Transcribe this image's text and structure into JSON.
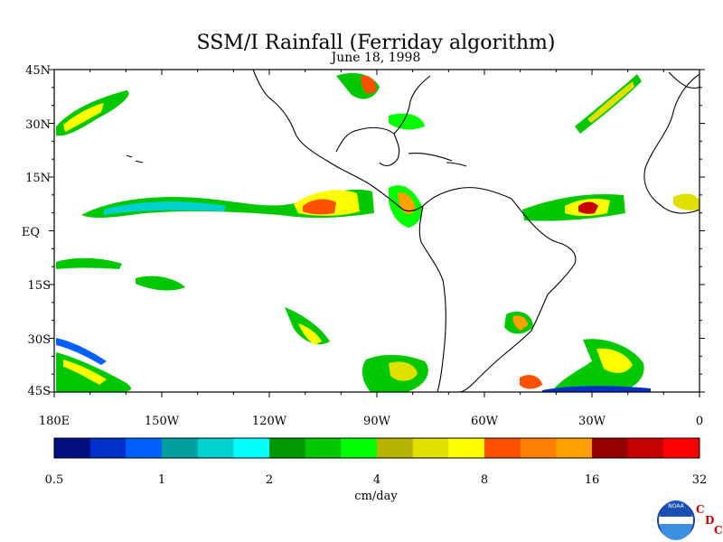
{
  "title": "SSM/I Rainfall (Ferriday algorithm)",
  "subtitle": "June 18, 1998",
  "map": {
    "lat_labels": [
      "45N",
      "30N",
      "15N",
      "EQ",
      "15S",
      "30S",
      "45S"
    ],
    "lon_labels": [
      "180E",
      "150W",
      "120W",
      "90W",
      "60W",
      "30W",
      "0"
    ]
  },
  "colorbar": {
    "unit_label": "cm/day",
    "tick_labels": [
      "0.5",
      "1",
      "2",
      "4",
      "8",
      "16",
      "32"
    ],
    "colors": [
      "#000e80",
      "#0030c8",
      "#0060ff",
      "#00a0a0",
      "#00d0d0",
      "#00ffff",
      "#009a00",
      "#00c800",
      "#00ff00",
      "#b4b400",
      "#e0e000",
      "#ffff00",
      "#ff5000",
      "#ff8000",
      "#ffa000",
      "#960000",
      "#c80000",
      "#ff0000"
    ]
  },
  "logo": {
    "noaa_text": "NOAA",
    "cdc_letters": [
      "C",
      "D",
      "C"
    ]
  }
}
